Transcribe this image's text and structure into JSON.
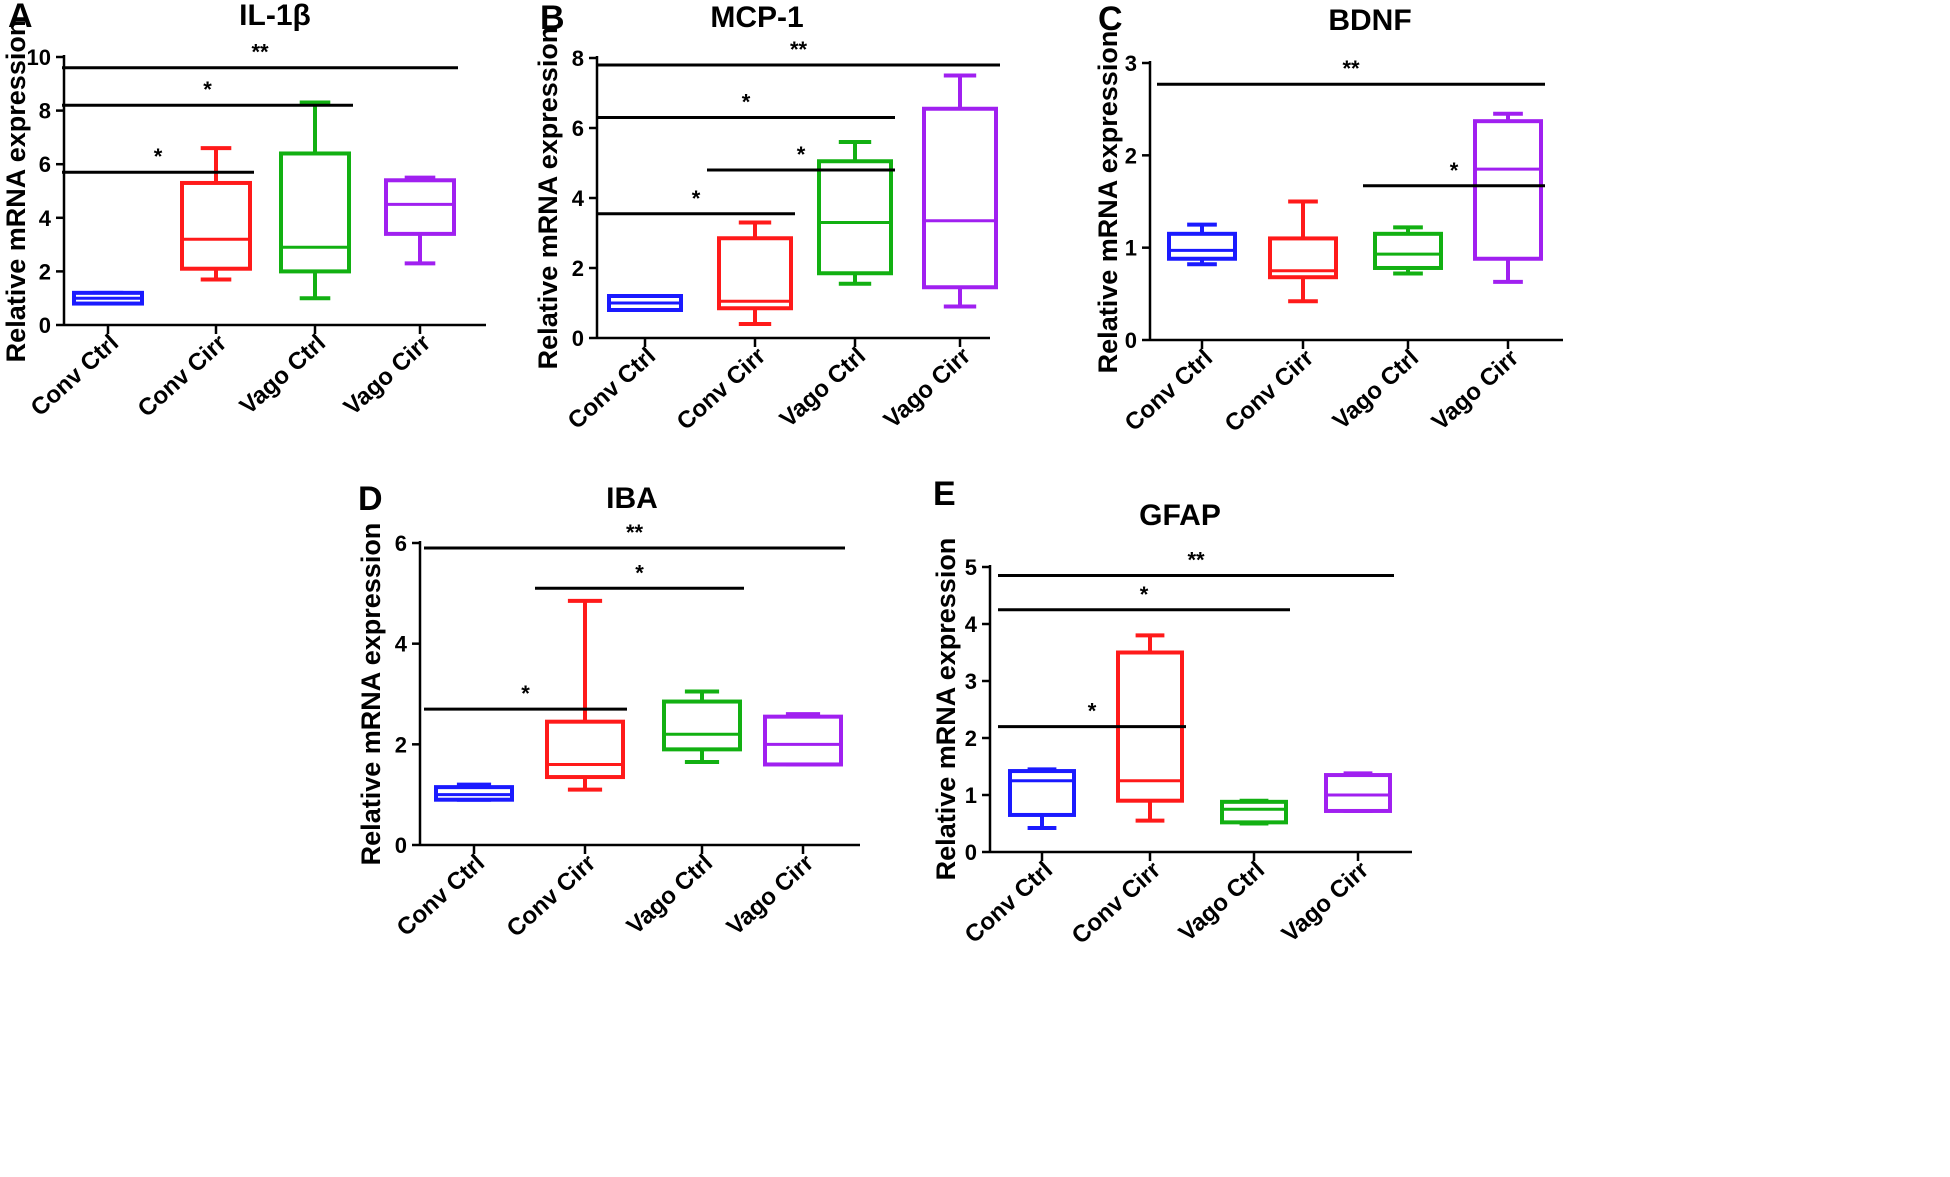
{
  "figure": {
    "caption_panels": [
      "A",
      "B",
      "C",
      "D",
      "E"
    ]
  },
  "chart_data": [
    {
      "type": "box",
      "panel": "A",
      "title": "IL-1β",
      "ylabel": "Relative mRNA expression",
      "xlabel": "",
      "categories": [
        "Conv Ctrl",
        "Conv Cirr",
        "Vago Ctrl",
        "Vago Cirr"
      ],
      "colors": [
        "#1a1aff",
        "#ff1a1a",
        "#12b012",
        "#a020f0"
      ],
      "ylim": [
        0,
        10
      ],
      "yticks": [
        0,
        2,
        4,
        6,
        8,
        10
      ],
      "boxes": [
        {
          "min": 0.8,
          "q1": 0.8,
          "median": 1.0,
          "q3": 1.2,
          "max": 1.2
        },
        {
          "min": 1.7,
          "q1": 2.1,
          "median": 3.2,
          "q3": 5.3,
          "max": 6.6
        },
        {
          "min": 1.0,
          "q1": 2.0,
          "median": 2.9,
          "q3": 6.4,
          "max": 8.3
        },
        {
          "min": 2.3,
          "q1": 3.4,
          "median": 4.5,
          "q3": 5.4,
          "max": 5.5
        }
      ],
      "significance": [
        {
          "from": "Conv Ctrl",
          "to": "Conv Cirr",
          "y": 5.7,
          "label": "*"
        },
        {
          "from": "Conv Ctrl",
          "to": "Vago Ctrl",
          "y": 8.2,
          "label": "*"
        },
        {
          "from": "Conv Ctrl",
          "to": "Vago Cirr",
          "y": 9.6,
          "label": "**"
        }
      ]
    },
    {
      "type": "box",
      "panel": "B",
      "title": "MCP-1",
      "ylabel": "Relative mRNA expression",
      "xlabel": "",
      "categories": [
        "Conv Ctrl",
        "Conv Cirr",
        "Vago Ctrl",
        "Vago Cirr"
      ],
      "colors": [
        "#1a1aff",
        "#ff1a1a",
        "#12b012",
        "#a020f0"
      ],
      "ylim": [
        0,
        8
      ],
      "yticks": [
        0,
        2,
        4,
        6,
        8
      ],
      "boxes": [
        {
          "min": 0.8,
          "q1": 0.8,
          "median": 1.0,
          "q3": 1.2,
          "max": 1.2
        },
        {
          "min": 0.4,
          "q1": 0.85,
          "median": 1.05,
          "q3": 2.85,
          "max": 3.3
        },
        {
          "min": 1.55,
          "q1": 1.85,
          "median": 3.3,
          "q3": 5.05,
          "max": 5.6
        },
        {
          "min": 0.9,
          "q1": 1.45,
          "median": 3.35,
          "q3": 6.55,
          "max": 7.5
        }
      ],
      "significance": [
        {
          "from": "Conv Ctrl",
          "to": "Conv Cirr",
          "y": 3.55,
          "label": "*"
        },
        {
          "from": "Conv Cirr",
          "to": "Vago Ctrl",
          "y": 4.8,
          "label": "*"
        },
        {
          "from": "Conv Ctrl",
          "to": "Vago Ctrl",
          "y": 6.3,
          "label": "*"
        },
        {
          "from": "Conv Ctrl",
          "to": "Vago Cirr",
          "y": 7.8,
          "label": "**"
        }
      ]
    },
    {
      "type": "box",
      "panel": "C",
      "title": "BDNF",
      "ylabel": "Relative mRNA expression",
      "xlabel": "",
      "categories": [
        "Conv Ctrl",
        "Conv Cirr",
        "Vago Ctrl",
        "Vago Cirr"
      ],
      "colors": [
        "#1a1aff",
        "#ff1a1a",
        "#12b012",
        "#a020f0"
      ],
      "ylim": [
        0,
        3
      ],
      "yticks": [
        0,
        1,
        2,
        3
      ],
      "boxes": [
        {
          "min": 0.82,
          "q1": 0.88,
          "median": 0.97,
          "q3": 1.15,
          "max": 1.25
        },
        {
          "min": 0.42,
          "q1": 0.68,
          "median": 0.75,
          "q3": 1.1,
          "max": 1.5
        },
        {
          "min": 0.72,
          "q1": 0.78,
          "median": 0.93,
          "q3": 1.15,
          "max": 1.22
        },
        {
          "min": 0.63,
          "q1": 0.88,
          "median": 1.85,
          "q3": 2.37,
          "max": 2.45
        }
      ],
      "significance": [
        {
          "from": "Vago Ctrl",
          "to": "Vago Cirr",
          "y": 1.67,
          "label": "*"
        },
        {
          "from": "Conv Ctrl",
          "to": "Vago Cirr",
          "y": 2.77,
          "label": "**"
        }
      ]
    },
    {
      "type": "box",
      "panel": "D",
      "title": "IBA",
      "ylabel": "Relative mRNA expression",
      "xlabel": "",
      "categories": [
        "Conv Ctrl",
        "Conv Cirr",
        "Vago Ctrl",
        "Vago Cirr"
      ],
      "colors": [
        "#1a1aff",
        "#ff1a1a",
        "#12b012",
        "#a020f0"
      ],
      "ylim": [
        0,
        6
      ],
      "yticks": [
        0,
        2,
        4,
        6
      ],
      "boxes": [
        {
          "min": 0.9,
          "q1": 0.9,
          "median": 1.0,
          "q3": 1.15,
          "max": 1.2
        },
        {
          "min": 1.1,
          "q1": 1.35,
          "median": 1.6,
          "q3": 2.45,
          "max": 4.85
        },
        {
          "min": 1.65,
          "q1": 1.9,
          "median": 2.2,
          "q3": 2.85,
          "max": 3.05
        },
        {
          "min": 1.6,
          "q1": 1.6,
          "median": 2.0,
          "q3": 2.55,
          "max": 2.6
        }
      ],
      "significance": [
        {
          "from": "Conv Ctrl",
          "to": "Conv Cirr",
          "y": 2.7,
          "label": "*"
        },
        {
          "from": "Conv Cirr",
          "to": "Vago Ctrl",
          "y": 5.1,
          "label": "*"
        },
        {
          "from": "Conv Ctrl",
          "to": "Vago Cirr",
          "y": 5.9,
          "label": "**"
        }
      ]
    },
    {
      "type": "box",
      "panel": "E",
      "title": "GFAP",
      "ylabel": "Relative mRNA expression",
      "xlabel": "",
      "categories": [
        "Conv Ctrl",
        "Conv Cirr",
        "Vago Ctrl",
        "Vago Cirr"
      ],
      "colors": [
        "#1a1aff",
        "#ff1a1a",
        "#12b012",
        "#a020f0"
      ],
      "ylim": [
        0,
        5
      ],
      "yticks": [
        0,
        1,
        2,
        3,
        4,
        5
      ],
      "boxes": [
        {
          "min": 0.42,
          "q1": 0.65,
          "median": 1.25,
          "q3": 1.42,
          "max": 1.45
        },
        {
          "min": 0.55,
          "q1": 0.9,
          "median": 1.25,
          "q3": 3.5,
          "max": 3.8
        },
        {
          "min": 0.5,
          "q1": 0.52,
          "median": 0.75,
          "q3": 0.88,
          "max": 0.9
        },
        {
          "min": 0.72,
          "q1": 0.72,
          "median": 1.0,
          "q3": 1.35,
          "max": 1.38
        }
      ],
      "significance": [
        {
          "from": "Conv Ctrl",
          "to": "Conv Cirr",
          "y": 2.2,
          "label": "*"
        },
        {
          "from": "Conv Ctrl",
          "to": "Vago Ctrl",
          "y": 4.25,
          "label": "*"
        },
        {
          "from": "Conv Ctrl",
          "to": "Vago Cirr",
          "y": 4.85,
          "label": "**"
        }
      ]
    }
  ]
}
